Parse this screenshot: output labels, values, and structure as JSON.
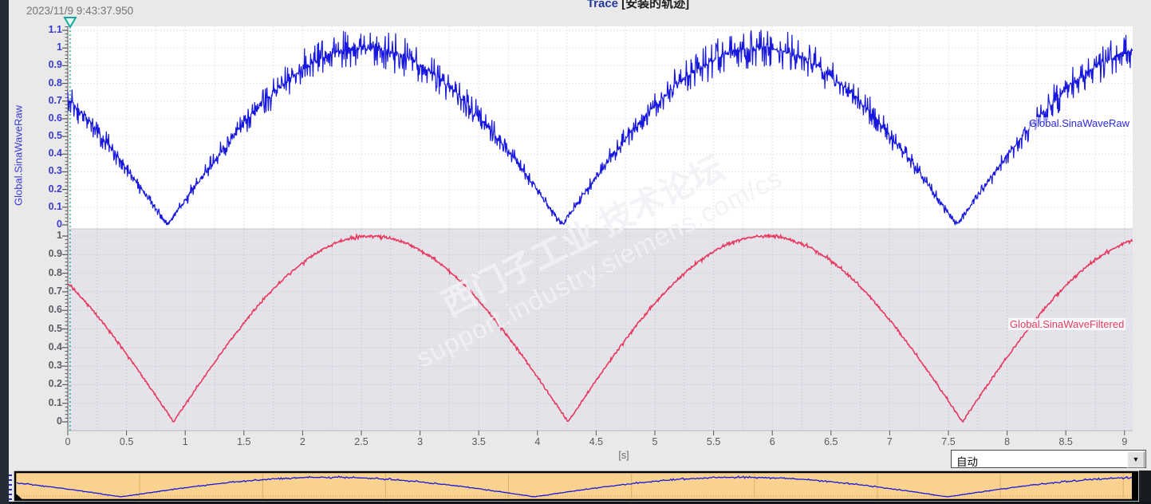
{
  "header": {
    "timestamp": "2023/11/9 9:43:37.950",
    "title_prefix": "Trace",
    "title_suffix": " [安装的轨迹]"
  },
  "watermark": {
    "line1": "西门子工业 技术论坛",
    "line2": "support.industry.siemens.com/cs"
  },
  "left_axis": {
    "name": "Global.SinaWaveRaw"
  },
  "axes": {
    "x": {
      "unit": "[s]",
      "min": 0,
      "max": 9.07,
      "tick_step": 0.5,
      "ticks": [
        "0",
        "0.5",
        "1",
        "1.5",
        "2",
        "2.5",
        "3",
        "3.5",
        "4",
        "4.5",
        "5",
        "5.5",
        "6",
        "6.5",
        "7",
        "7.5",
        "8",
        "8.5",
        "9"
      ]
    },
    "y_top": {
      "color": "#3a3ad0",
      "ticks": [
        "1.1",
        "1",
        "0.9",
        "0.8",
        "0.7",
        "0.6",
        "0.5",
        "0.4",
        "0.3",
        "0.2",
        "0.1",
        "0"
      ]
    },
    "y_bottom": {
      "color": "#5c5c66",
      "ticks": [
        "1",
        "0.9",
        "0.8",
        "0.7",
        "0.6",
        "0.5",
        "0.4",
        "0.3",
        "0.2",
        "0.1",
        "0"
      ]
    }
  },
  "series": [
    {
      "label": "Global.SinaWaveRaw",
      "color": "#1717dd"
    },
    {
      "label": "Global.SinaWaveFiltered",
      "color": "#e63a60"
    }
  ],
  "controls": {
    "time_mode_value": "自动"
  },
  "trigger": {
    "time_s": 0.02,
    "color": "#12a9a2"
  },
  "chart_data": [
    {
      "type": "line",
      "panel": "top",
      "title": "Trace [安装的轨迹]",
      "series_name": "Global.SinaWaveRaw",
      "color": "#1717dd",
      "background": "#ffffff",
      "waveform": "rectified-sine-with-noise",
      "amplitude": 1.0,
      "half_period_s": 3.36,
      "phase_zero_s": 0.85,
      "minima_t": [
        0.85,
        4.2,
        7.58
      ],
      "maxima_t": [
        2.52,
        5.9
      ],
      "x_range_s": [
        0,
        9.07
      ],
      "ylim": [
        0,
        1.13
      ],
      "grid": true,
      "t_step": 0.5,
      "values_t_step_0_5": [
        0.71,
        0.32,
        0.14,
        0.59,
        0.91,
        1.0,
        0.82,
        0.42,
        0.2,
        0.27,
        0.68,
        0.93,
        0.99,
        0.85,
        0.51,
        0.07,
        0.39,
        0.76,
        0.97
      ],
      "seed": 11,
      "sample_dt": 0.004,
      "vclip": 1.12,
      "noise": {
        "base": 0.012,
        "spike_prob": 0.6,
        "floor": 0.015,
        "peak": 0.1,
        "proportional": true
      }
    },
    {
      "type": "line",
      "panel": "bottom",
      "series_name": "Global.SinaWaveFiltered",
      "color": "#e63a60",
      "background": "#e4e3e9",
      "waveform": "rectified-sine-filtered",
      "amplitude": 1.0,
      "half_period_s": 3.36,
      "phase_zero_s": 0.9,
      "minima_t": [
        0.9,
        4.25,
        7.62
      ],
      "maxima_t": [
        2.56,
        5.95
      ],
      "x_range_s": [
        0,
        9.07
      ],
      "ylim": [
        0,
        1.07
      ],
      "grid": true,
      "t_step": 0.5,
      "values_t_step_0_5": [
        0.74,
        0.37,
        0.09,
        0.53,
        0.86,
        1.0,
        0.92,
        0.65,
        0.24,
        0.22,
        0.64,
        0.91,
        1.0,
        0.87,
        0.55,
        0.11,
        0.35,
        0.73,
        0.96
      ],
      "seed": 29,
      "sample_dt": 0.006,
      "vclip": 1.02,
      "noise": {
        "base": 0.005,
        "spike_prob": 0.35,
        "floor": 0.004,
        "peak": 0.008,
        "proportional": true
      }
    },
    {
      "type": "line",
      "panel": "overview",
      "series_name": "Global.SinaWaveRaw",
      "color": "#1717dd",
      "background": "#f8d28e",
      "mirrors_panel": "top",
      "x_range_s": [
        0,
        9.07
      ],
      "ylim": [
        0,
        1.1
      ],
      "seed": 11,
      "sample_dt": 0.01,
      "vclip": 1.08,
      "noise_scale": 0.5
    }
  ]
}
